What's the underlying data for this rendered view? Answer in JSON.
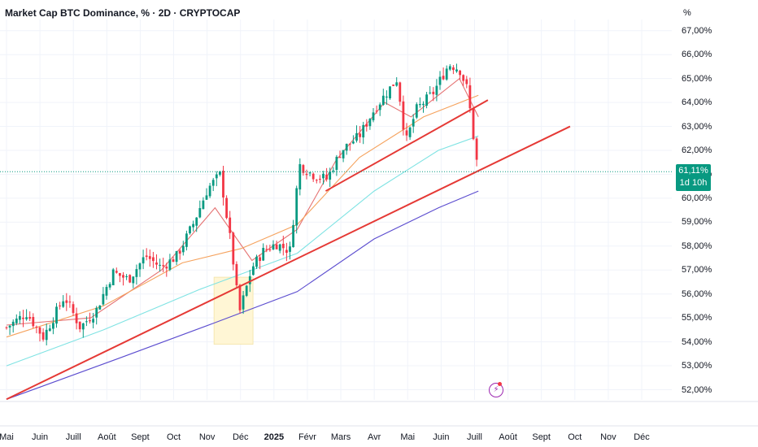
{
  "header": {
    "title": "Market Cap BTC Dominance, % · 2D · CRYPTOCAP",
    "unit": "%"
  },
  "price_badge": {
    "value": "61,11%",
    "countdown": "1d 10h",
    "color": "#089981"
  },
  "icons": [
    "lightning-alert-icon"
  ],
  "colors": {
    "up": "#089981",
    "down": "#f23645",
    "trendline": "#e53935",
    "ma_short": "#e57373",
    "ma_mid": "#f5a25d",
    "ma_long": "#7fe3e3",
    "ma_longest": "#5b4ccf",
    "highlight": "#fff6d5"
  },
  "chart_data": {
    "type": "candlestick",
    "title": "Market Cap BTC Dominance, % · 2D · CRYPTOCAP",
    "y_unit": "%",
    "ylim": [
      51.6,
      67.4
    ],
    "y_ticks": [
      "52,00%",
      "53,00%",
      "54,00%",
      "55,00%",
      "56,00%",
      "57,00%",
      "58,00%",
      "59,00%",
      "60,00%",
      "61,00%",
      "62,00%",
      "63,00%",
      "64,00%",
      "65,00%",
      "66,00%",
      "67,00%"
    ],
    "x_ticks": [
      "Mai",
      "Juin",
      "Juill",
      "Août",
      "Sept",
      "Oct",
      "Nov",
      "Déc",
      "2025",
      "Févr",
      "Mars",
      "Avr",
      "Mai",
      "Juin",
      "Juill",
      "Août",
      "Sept",
      "Oct",
      "Nov",
      "Déc"
    ],
    "x_range": [
      "2024-05-01",
      "2025-12-25"
    ],
    "last_value": 61.11,
    "close_series": [
      {
        "date": "2024-05-01",
        "value": 54.6
      },
      {
        "date": "2024-05-20",
        "value": 55.2
      },
      {
        "date": "2024-06-05",
        "value": 54.2
      },
      {
        "date": "2024-06-25",
        "value": 55.9
      },
      {
        "date": "2024-07-10",
        "value": 54.6
      },
      {
        "date": "2024-07-25",
        "value": 55.3
      },
      {
        "date": "2024-08-10",
        "value": 56.9
      },
      {
        "date": "2024-08-25",
        "value": 56.6
      },
      {
        "date": "2024-09-10",
        "value": 57.6
      },
      {
        "date": "2024-09-25",
        "value": 57.1
      },
      {
        "date": "2024-10-10",
        "value": 57.6
      },
      {
        "date": "2024-10-25",
        "value": 58.9
      },
      {
        "date": "2024-11-08",
        "value": 60.4
      },
      {
        "date": "2024-11-20",
        "value": 61.0
      },
      {
        "date": "2024-12-01",
        "value": 57.8
      },
      {
        "date": "2024-12-08",
        "value": 55.2
      },
      {
        "date": "2024-12-20",
        "value": 57.1
      },
      {
        "date": "2024-12-31",
        "value": 57.8
      },
      {
        "date": "2025-01-12",
        "value": 58.1
      },
      {
        "date": "2025-01-25",
        "value": 57.8
      },
      {
        "date": "2025-02-03",
        "value": 61.4
      },
      {
        "date": "2025-02-15",
        "value": 61.0
      },
      {
        "date": "2025-03-01",
        "value": 60.8
      },
      {
        "date": "2025-03-15",
        "value": 62.0
      },
      {
        "date": "2025-04-01",
        "value": 62.6
      },
      {
        "date": "2025-04-15",
        "value": 63.7
      },
      {
        "date": "2025-04-30",
        "value": 64.6
      },
      {
        "date": "2025-05-07",
        "value": 65.0
      },
      {
        "date": "2025-05-15",
        "value": 62.3
      },
      {
        "date": "2025-05-25",
        "value": 63.7
      },
      {
        "date": "2025-06-10",
        "value": 64.4
      },
      {
        "date": "2025-06-25",
        "value": 65.6
      },
      {
        "date": "2025-07-05",
        "value": 65.4
      },
      {
        "date": "2025-07-12",
        "value": 64.6
      },
      {
        "date": "2025-07-16",
        "value": 63.4
      },
      {
        "date": "2025-07-20",
        "value": 61.9
      },
      {
        "date": "2025-07-23",
        "value": 61.11
      }
    ],
    "moving_averages": [
      {
        "color_key": "ma_short",
        "points": [
          {
            "date": "2024-05-01",
            "value": 54.7
          },
          {
            "date": "2024-07-20",
            "value": 55.0
          },
          {
            "date": "2024-09-25",
            "value": 57.0
          },
          {
            "date": "2024-11-15",
            "value": 59.6
          },
          {
            "date": "2024-12-20",
            "value": 57.4
          },
          {
            "date": "2025-02-01",
            "value": 58.7
          },
          {
            "date": "2025-03-10",
            "value": 61.6
          },
          {
            "date": "2025-04-25",
            "value": 64.0
          },
          {
            "date": "2025-05-20",
            "value": 63.4
          },
          {
            "date": "2025-07-05",
            "value": 65.0
          },
          {
            "date": "2025-07-23",
            "value": 63.4
          }
        ]
      },
      {
        "color_key": "ma_mid",
        "points": [
          {
            "date": "2024-05-01",
            "value": 54.2
          },
          {
            "date": "2024-08-01",
            "value": 55.5
          },
          {
            "date": "2024-10-15",
            "value": 57.3
          },
          {
            "date": "2024-12-10",
            "value": 57.9
          },
          {
            "date": "2025-02-01",
            "value": 58.9
          },
          {
            "date": "2025-04-01",
            "value": 61.7
          },
          {
            "date": "2025-06-01",
            "value": 63.4
          },
          {
            "date": "2025-07-23",
            "value": 64.3
          }
        ]
      },
      {
        "color_key": "ma_long",
        "points": [
          {
            "date": "2024-05-01",
            "value": 53.0
          },
          {
            "date": "2024-08-01",
            "value": 54.5
          },
          {
            "date": "2024-11-01",
            "value": 56.2
          },
          {
            "date": "2025-02-01",
            "value": 57.7
          },
          {
            "date": "2025-04-15",
            "value": 60.3
          },
          {
            "date": "2025-06-15",
            "value": 62.0
          },
          {
            "date": "2025-07-23",
            "value": 62.6
          }
        ]
      },
      {
        "color_key": "ma_longest",
        "points": [
          {
            "date": "2024-05-01",
            "value": 51.6
          },
          {
            "date": "2024-08-15",
            "value": 53.3
          },
          {
            "date": "2024-11-15",
            "value": 54.8
          },
          {
            "date": "2025-02-01",
            "value": 56.1
          },
          {
            "date": "2025-04-15",
            "value": 58.3
          },
          {
            "date": "2025-06-15",
            "value": 59.6
          },
          {
            "date": "2025-07-23",
            "value": 60.3
          }
        ]
      }
    ],
    "trendlines": [
      {
        "start": {
          "date": "2024-05-01",
          "value": 51.6
        },
        "end": {
          "date": "2025-10-18",
          "value": 63.0
        }
      },
      {
        "start": {
          "date": "2025-02-28",
          "value": 60.3
        },
        "end": {
          "date": "2025-08-01",
          "value": 64.1
        }
      }
    ],
    "highlight_box": {
      "date_start": "2024-11-14",
      "date_end": "2024-12-21",
      "value_low": 53.9,
      "value_high": 56.7
    },
    "grid": true,
    "current_price_line": 61.11
  }
}
